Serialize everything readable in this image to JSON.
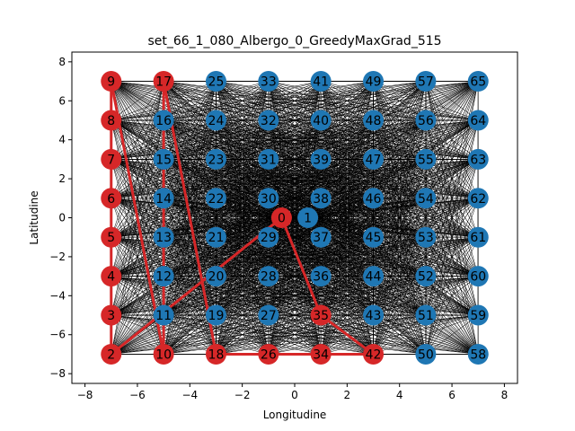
{
  "chart_data": {
    "type": "scatter",
    "title": "set_66_1_080_Albergo_0_GreedyMaxGrad_515",
    "xlabel": "Longitudine",
    "ylabel": "Latitudine",
    "xlim": [
      -8.5,
      8.5
    ],
    "ylim": [
      -8.5,
      8.5
    ],
    "xticks": [
      -8,
      -6,
      -4,
      -2,
      0,
      2,
      4,
      6,
      8
    ],
    "yticks": [
      -8,
      -6,
      -4,
      -2,
      0,
      2,
      4,
      6,
      8
    ],
    "grid": false,
    "colors": {
      "selected": "#d62728",
      "unselected": "#1f77b4",
      "route": "#d62728",
      "edges": "#000000"
    },
    "nodes": [
      {
        "id": 0,
        "x": -0.5,
        "y": 0,
        "selected": true
      },
      {
        "id": 1,
        "x": 0.5,
        "y": 0,
        "selected": false
      },
      {
        "id": 2,
        "x": -7,
        "y": -7,
        "selected": true
      },
      {
        "id": 3,
        "x": -7,
        "y": -5,
        "selected": true
      },
      {
        "id": 4,
        "x": -7,
        "y": -3,
        "selected": true
      },
      {
        "id": 5,
        "x": -7,
        "y": -1,
        "selected": true
      },
      {
        "id": 6,
        "x": -7,
        "y": 1,
        "selected": true
      },
      {
        "id": 7,
        "x": -7,
        "y": 3,
        "selected": true
      },
      {
        "id": 8,
        "x": -7,
        "y": 5,
        "selected": true
      },
      {
        "id": 9,
        "x": -7,
        "y": 7,
        "selected": true
      },
      {
        "id": 10,
        "x": -5,
        "y": -7,
        "selected": true
      },
      {
        "id": 11,
        "x": -5,
        "y": -5,
        "selected": false
      },
      {
        "id": 12,
        "x": -5,
        "y": -3,
        "selected": false
      },
      {
        "id": 13,
        "x": -5,
        "y": -1,
        "selected": false
      },
      {
        "id": 14,
        "x": -5,
        "y": 1,
        "selected": false
      },
      {
        "id": 15,
        "x": -5,
        "y": 3,
        "selected": false
      },
      {
        "id": 16,
        "x": -5,
        "y": 5,
        "selected": false
      },
      {
        "id": 17,
        "x": -5,
        "y": 7,
        "selected": true
      },
      {
        "id": 18,
        "x": -3,
        "y": -7,
        "selected": true
      },
      {
        "id": 19,
        "x": -3,
        "y": -5,
        "selected": false
      },
      {
        "id": 20,
        "x": -3,
        "y": -3,
        "selected": false
      },
      {
        "id": 21,
        "x": -3,
        "y": -1,
        "selected": false
      },
      {
        "id": 22,
        "x": -3,
        "y": 1,
        "selected": false
      },
      {
        "id": 23,
        "x": -3,
        "y": 3,
        "selected": false
      },
      {
        "id": 24,
        "x": -3,
        "y": 5,
        "selected": false
      },
      {
        "id": 25,
        "x": -3,
        "y": 7,
        "selected": false
      },
      {
        "id": 26,
        "x": -1,
        "y": -7,
        "selected": true
      },
      {
        "id": 27,
        "x": -1,
        "y": -5,
        "selected": false
      },
      {
        "id": 28,
        "x": -1,
        "y": -3,
        "selected": false
      },
      {
        "id": 29,
        "x": -1,
        "y": -1,
        "selected": false
      },
      {
        "id": 30,
        "x": -1,
        "y": 1,
        "selected": false
      },
      {
        "id": 31,
        "x": -1,
        "y": 3,
        "selected": false
      },
      {
        "id": 32,
        "x": -1,
        "y": 5,
        "selected": false
      },
      {
        "id": 33,
        "x": -1,
        "y": 7,
        "selected": false
      },
      {
        "id": 34,
        "x": 1,
        "y": -7,
        "selected": true
      },
      {
        "id": 35,
        "x": 1,
        "y": -5,
        "selected": true
      },
      {
        "id": 36,
        "x": 1,
        "y": -3,
        "selected": false
      },
      {
        "id": 37,
        "x": 1,
        "y": -1,
        "selected": false
      },
      {
        "id": 38,
        "x": 1,
        "y": 1,
        "selected": false
      },
      {
        "id": 39,
        "x": 1,
        "y": 3,
        "selected": false
      },
      {
        "id": 40,
        "x": 1,
        "y": 5,
        "selected": false
      },
      {
        "id": 41,
        "x": 1,
        "y": 7,
        "selected": false
      },
      {
        "id": 42,
        "x": 3,
        "y": -7,
        "selected": true
      },
      {
        "id": 43,
        "x": 3,
        "y": -5,
        "selected": false
      },
      {
        "id": 44,
        "x": 3,
        "y": -3,
        "selected": false
      },
      {
        "id": 45,
        "x": 3,
        "y": -1,
        "selected": false
      },
      {
        "id": 46,
        "x": 3,
        "y": 1,
        "selected": false
      },
      {
        "id": 47,
        "x": 3,
        "y": 3,
        "selected": false
      },
      {
        "id": 48,
        "x": 3,
        "y": 5,
        "selected": false
      },
      {
        "id": 49,
        "x": 3,
        "y": 7,
        "selected": false
      },
      {
        "id": 50,
        "x": 5,
        "y": -7,
        "selected": false
      },
      {
        "id": 51,
        "x": 5,
        "y": -5,
        "selected": false
      },
      {
        "id": 52,
        "x": 5,
        "y": -3,
        "selected": false
      },
      {
        "id": 53,
        "x": 5,
        "y": -1,
        "selected": false
      },
      {
        "id": 54,
        "x": 5,
        "y": 1,
        "selected": false
      },
      {
        "id": 55,
        "x": 5,
        "y": 3,
        "selected": false
      },
      {
        "id": 56,
        "x": 5,
        "y": 5,
        "selected": false
      },
      {
        "id": 57,
        "x": 5,
        "y": 7,
        "selected": false
      },
      {
        "id": 58,
        "x": 7,
        "y": -7,
        "selected": false
      },
      {
        "id": 59,
        "x": 7,
        "y": -5,
        "selected": false
      },
      {
        "id": 60,
        "x": 7,
        "y": -3,
        "selected": false
      },
      {
        "id": 61,
        "x": 7,
        "y": -1,
        "selected": false
      },
      {
        "id": 62,
        "x": 7,
        "y": 1,
        "selected": false
      },
      {
        "id": 63,
        "x": 7,
        "y": 3,
        "selected": false
      },
      {
        "id": 64,
        "x": 7,
        "y": 5,
        "selected": false
      },
      {
        "id": 65,
        "x": 7,
        "y": 7,
        "selected": false
      }
    ],
    "route": [
      0,
      2,
      3,
      4,
      5,
      6,
      7,
      8,
      9,
      10,
      17,
      18,
      26,
      34,
      42,
      35,
      0
    ]
  }
}
